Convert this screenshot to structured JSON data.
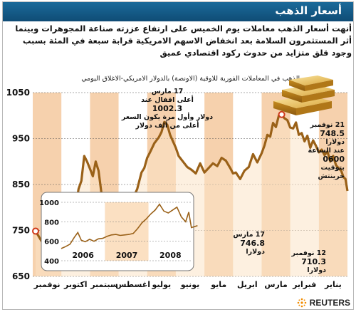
{
  "title": "أسعار الذهب",
  "headline": "أنهت أسعار الذهب معاملات يوم الخميس على ارتفاع عززته صناعة المجوهرات وبينما أثر المستثمرون السلامة بعد انخفاض الاسهم الامريكية قرابة سبعة في المئة بسبب وجود قلق متزايد من حدوث ركود اقتصادي عميق",
  "chart_subtitle": "سعر الذهب في المعاملات الفورية للاوقية (الاونصة) بالدولار الامريكي-الاغلاق اليومي",
  "brand": "REUTERS",
  "annotations": {
    "mar08": {
      "date": "17 مارس",
      "line1": "أعلى اقفال عند",
      "value": "1002.3",
      "line2": "دولار وأول مرة يكون السعر",
      "line3": "أعلى من ألف دولار"
    },
    "nov21": {
      "date": "21 نوفمبر",
      "value": "748.5",
      "line1": "دولارا",
      "line2": "عند الساعة",
      "time": "0600",
      "line3": "بتوقيت",
      "line4": "جرينتش"
    },
    "mar17": {
      "date": "17 مارس",
      "value": "746.8",
      "unit": "دولارا"
    },
    "nov12": {
      "date": "12 نوفمبر",
      "value": "710.3",
      "unit": "دولارا"
    }
  },
  "colors": {
    "line": "#9a6118",
    "band": "#f3c192",
    "band_alt": "#ffffff",
    "accent": "#0f4c75",
    "marker": "#cf3a1c"
  },
  "chart_data": [
    {
      "type": "line",
      "title": "سعر الذهب في المعاملات الفورية للاوقية (الاونصة) بالدولار الامريكي-الاغلاق اليومي",
      "categories": [
        "يناير",
        "فبراير",
        "مارس",
        "ابريل",
        "مايو",
        "يونيو",
        "يوليو",
        "اغسطس",
        "سبتمبر",
        "اكتوبر",
        "نوفمبر"
      ],
      "x_direction": "right-to-left",
      "ylim": [
        650,
        1050
      ],
      "yticks": [
        650,
        750,
        850,
        950,
        1050
      ],
      "series": [
        {
          "values": [
            [
              0.0,
              836
            ],
            [
              0.07,
              862
            ],
            [
              0.14,
              866
            ],
            [
              0.22,
              880
            ],
            [
              0.3,
              885
            ],
            [
              0.4,
              892
            ],
            [
              0.5,
              912
            ],
            [
              0.6,
              900
            ],
            [
              0.7,
              922
            ],
            [
              0.8,
              914
            ],
            [
              0.9,
              926
            ],
            [
              1.0,
              920
            ],
            [
              1.1,
              934
            ],
            [
              1.2,
              946
            ],
            [
              1.3,
              930
            ],
            [
              1.4,
              956
            ],
            [
              1.5,
              944
            ],
            [
              1.6,
              962
            ],
            [
              1.7,
              958
            ],
            [
              1.8,
              985
            ],
            [
              1.9,
              972
            ],
            [
              2.0,
              974
            ],
            [
              2.1,
              990
            ],
            [
              2.2,
              994
            ],
            [
              2.3,
              1002
            ],
            [
              2.4,
              1000
            ],
            [
              2.5,
              975
            ],
            [
              2.6,
              984
            ],
            [
              2.7,
              954
            ],
            [
              2.8,
              958
            ],
            [
              2.9,
              935
            ],
            [
              3.0,
              918
            ],
            [
              3.15,
              898
            ],
            [
              3.3,
              916
            ],
            [
              3.45,
              888
            ],
            [
              3.6,
              880
            ],
            [
              3.75,
              862
            ],
            [
              3.9,
              876
            ],
            [
              4.0,
              874
            ],
            [
              4.1,
              886
            ],
            [
              4.25,
              902
            ],
            [
              4.4,
              908
            ],
            [
              4.55,
              890
            ],
            [
              4.7,
              896
            ],
            [
              4.85,
              886
            ],
            [
              5.0,
              876
            ],
            [
              5.15,
              896
            ],
            [
              5.3,
              874
            ],
            [
              5.45,
              882
            ],
            [
              5.6,
              888
            ],
            [
              5.75,
              900
            ],
            [
              5.9,
              912
            ],
            [
              6.0,
              930
            ],
            [
              6.1,
              944
            ],
            [
              6.2,
              958
            ],
            [
              6.3,
              980
            ],
            [
              6.4,
              986
            ],
            [
              6.5,
              964
            ],
            [
              6.6,
              952
            ],
            [
              6.75,
              940
            ],
            [
              6.9,
              920
            ],
            [
              7.0,
              908
            ],
            [
              7.1,
              886
            ],
            [
              7.2,
              876
            ],
            [
              7.35,
              840
            ],
            [
              7.5,
              820
            ],
            [
              7.65,
              810
            ],
            [
              7.8,
              790
            ],
            [
              7.9,
              806
            ],
            [
              8.0,
              815
            ],
            [
              8.15,
              780
            ],
            [
              8.3,
              748
            ],
            [
              8.45,
              776
            ],
            [
              8.6,
              832
            ],
            [
              8.7,
              880
            ],
            [
              8.8,
              900
            ],
            [
              8.9,
              868
            ],
            [
              9.0,
              884
            ],
            [
              9.1,
              900
            ],
            [
              9.2,
              912
            ],
            [
              9.3,
              858
            ],
            [
              9.4,
              840
            ],
            [
              9.5,
              800
            ],
            [
              9.6,
              775
            ],
            [
              9.7,
              712
            ],
            [
              9.8,
              740
            ],
            [
              9.9,
              728
            ],
            [
              10.0,
              730
            ],
            [
              10.2,
              715
            ],
            [
              10.35,
              710
            ],
            [
              10.5,
              728
            ],
            [
              10.65,
              722
            ],
            [
              10.8,
              738
            ],
            [
              10.9,
              748.5
            ]
          ]
        }
      ],
      "markers": [
        {
          "x": 2.3,
          "y": 1002.3
        },
        {
          "x": 8.3,
          "y": 746.8
        },
        {
          "x": 10.35,
          "y": 710.3
        },
        {
          "x": 10.9,
          "y": 748.5
        }
      ]
    },
    {
      "type": "line",
      "categories": [
        "2006",
        "2007",
        "2008"
      ],
      "x_direction": "left-to-right",
      "ylim": [
        400,
        1000
      ],
      "yticks": [
        400,
        600,
        800,
        1000
      ],
      "series": [
        {
          "values": [
            [
              0.0,
              525
            ],
            [
              0.1,
              545
            ],
            [
              0.2,
              570
            ],
            [
              0.3,
              640
            ],
            [
              0.38,
              690
            ],
            [
              0.46,
              610
            ],
            [
              0.55,
              595
            ],
            [
              0.65,
              620
            ],
            [
              0.75,
              600
            ],
            [
              0.85,
              625
            ],
            [
              0.95,
              630
            ],
            [
              1.05,
              650
            ],
            [
              1.15,
              665
            ],
            [
              1.25,
              670
            ],
            [
              1.35,
              660
            ],
            [
              1.45,
              665
            ],
            [
              1.55,
              670
            ],
            [
              1.65,
              680
            ],
            [
              1.75,
              730
            ],
            [
              1.85,
              790
            ],
            [
              1.95,
              830
            ],
            [
              2.05,
              880
            ],
            [
              2.15,
              920
            ],
            [
              2.25,
              980
            ],
            [
              2.35,
              910
            ],
            [
              2.45,
              890
            ],
            [
              2.55,
              920
            ],
            [
              2.65,
              950
            ],
            [
              2.75,
              850
            ],
            [
              2.85,
              800
            ],
            [
              2.92,
              900
            ],
            [
              2.98,
              740
            ],
            [
              3.05,
              750
            ],
            [
              3.12,
              760
            ]
          ]
        }
      ]
    }
  ]
}
